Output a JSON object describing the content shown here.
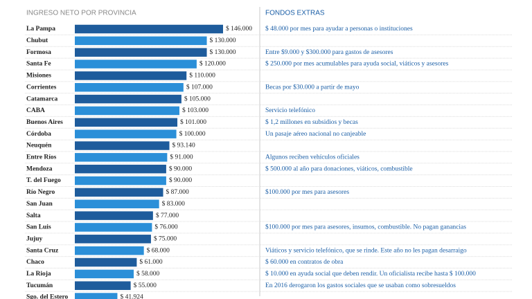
{
  "chart_data": {
    "type": "bar",
    "orientation": "horizontal",
    "title": "INGRESO NETO POR PROVINCIA",
    "notes_title": "FONDOS EXTRAS",
    "categories": [
      "La Pampa",
      "Chubut",
      "Formosa",
      "Santa Fe",
      "Misiones",
      "Corrientes",
      "Catamarca",
      "CABA",
      "Buenos Aires",
      "Córdoba",
      "Neuquén",
      "Entre Ríos",
      "Mendoza",
      "T. del Fuego",
      "Río Negro",
      "San Juan",
      "Salta",
      "San Luis",
      "Jujuy",
      "Santa Cruz",
      "Chaco",
      "La Rioja",
      "Tucumán",
      "Sgo. del Estero"
    ],
    "values": [
      146000,
      130000,
      130000,
      120000,
      110000,
      107000,
      105000,
      103000,
      101000,
      100000,
      93140,
      91000,
      90000,
      90000,
      87000,
      83000,
      77000,
      76000,
      75000,
      68000,
      61000,
      58000,
      55000,
      41924
    ],
    "value_labels": [
      "$ 146.000",
      "$ 130.000",
      "$ 130.000",
      "$ 120.000",
      "$ 110.000",
      "$ 107.000",
      "$ 105.000",
      "$ 103.000",
      "$ 101.000",
      "$ 100.000",
      "$ 93.140",
      "$ 91.000",
      "$ 90.000",
      "$ 90.000",
      "$ 87.000",
      "$ 83.000",
      "$ 77.000",
      "$ 76.000",
      "$ 75.000",
      "$ 68.000",
      "$ 61.000",
      "$ 58.000",
      "$ 55.000",
      "$ 41.924"
    ],
    "notes": [
      "$ 48.000 por mes para ayudar a personas o instituciones",
      null,
      "Entre $9.000 y $300.000 para gastos de asesores",
      "$ 250.000 por mes acumulables para ayuda social, viáticos y asesores",
      null,
      "Becas por $30.000 a partir de mayo",
      null,
      "Servicio telefónico",
      "$ 1,2 millones en subsidios y becas",
      "Un pasaje aéreo nacional no canjeable",
      null,
      "Algunos reciben vehículos oficiales",
      "$ 500.000 al año para donaciones, viáticos, combustible",
      null,
      "$100.000 por mes para asesores",
      null,
      null,
      "$100.000 por mes para asesores, insumos, combustible. No pagan ganancias",
      null,
      "Viáticos y servicio telefónico, que se rinde. Este año no les pagan desarraigo",
      "$ 60.000 en contratos de obra",
      "$ 10.000 en ayuda social que deben rendir. Un oficialista recibe hasta $ 100.000",
      "En 2016 derogaron los gastos sociales que se usaban como sobresueldos",
      null
    ],
    "colors": [
      "#1e5c9c",
      "#2b8fd8"
    ]
  }
}
